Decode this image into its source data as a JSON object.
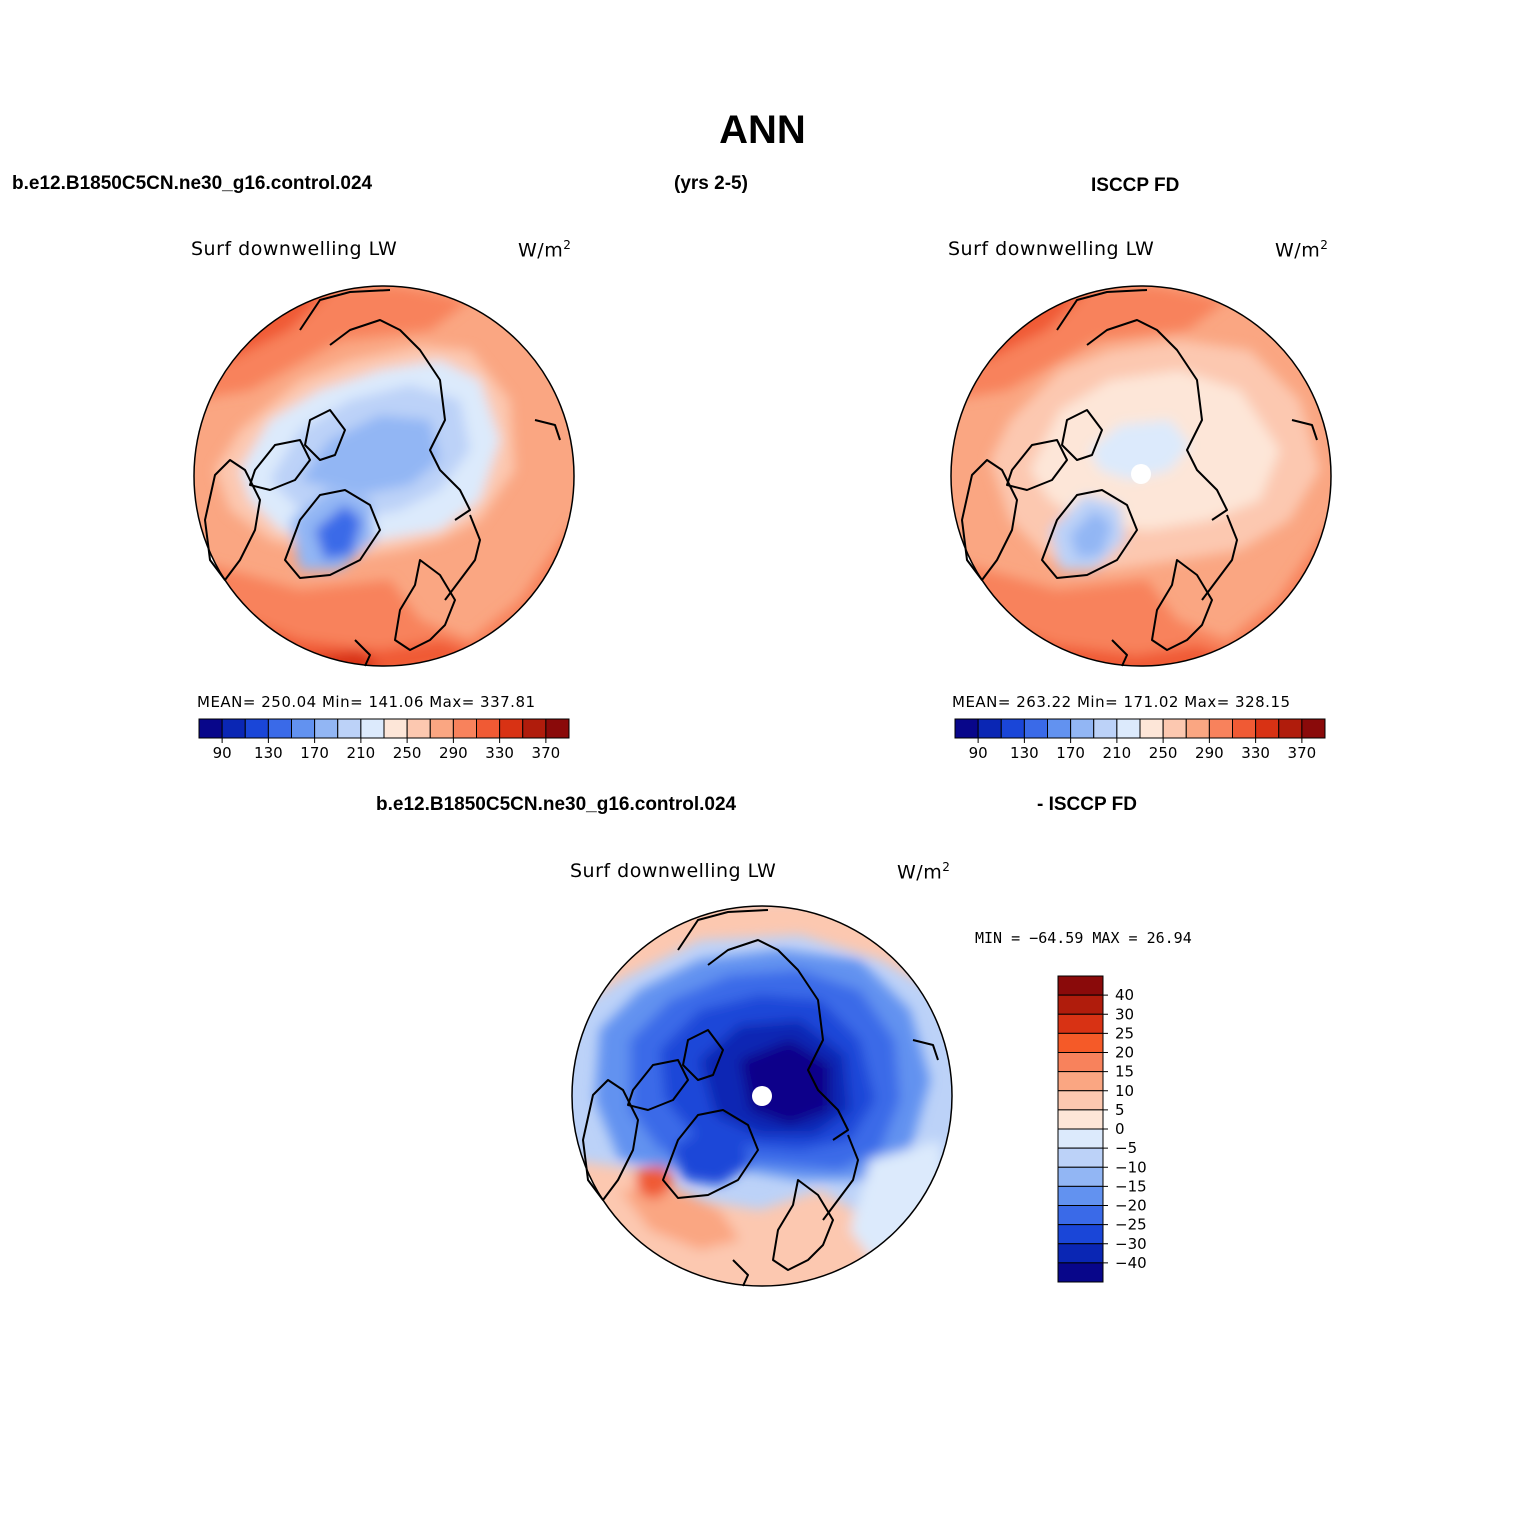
{
  "page": {
    "title": "ANN",
    "case_name": "b.e12.B1850C5CN.ne30_g16.control.024",
    "years": "(yrs 2-5)",
    "obs_name": "ISCCP FD",
    "diff_case_name": "b.e12.B1850C5CN.ne30_g16.control.024",
    "diff_obs_name": "- ISCCP FD"
  },
  "panels": {
    "model": {
      "variable": "Surf downwelling LW",
      "units": "W/m",
      "units_exp": "2",
      "stats": "MEAN= 250.04   Min= 141.06   Max= 337.81"
    },
    "obs": {
      "variable": "Surf downwelling LW",
      "units": "W/m",
      "units_exp": "2",
      "stats": "MEAN= 263.22   Min= 171.02   Max= 328.15"
    },
    "diff": {
      "variable": "Surf downwelling LW",
      "units": "W/m",
      "units_exp": "2",
      "stats": "MIN = −64.59 MAX =   26.94"
    }
  },
  "colorbars": {
    "absolute": {
      "colors": [
        "#08068a",
        "#0a26b4",
        "#1a46d8",
        "#3a6ae8",
        "#6292f0",
        "#92b6f4",
        "#bcd2f8",
        "#dceafc",
        "#fde6d8",
        "#fcc8b0",
        "#faa682",
        "#f8825c",
        "#f05a34",
        "#d83214",
        "#b01c0c",
        "#8a0a0a"
      ],
      "labels": [
        "90",
        "130",
        "170",
        "210",
        "250",
        "290",
        "330",
        "370"
      ]
    },
    "difference": {
      "colors": [
        "#8a0a0a",
        "#b01c0c",
        "#d83214",
        "#f55a28",
        "#f8825c",
        "#faa682",
        "#fcc8b0",
        "#fde6d8",
        "#dceafc",
        "#bcd2f8",
        "#92b6f4",
        "#6292f0",
        "#3a6ae8",
        "#1a46d8",
        "#0a26b4",
        "#08068a"
      ],
      "labels": [
        "40",
        "30",
        "25",
        "20",
        "15",
        "10",
        "5",
        "0",
        "−5",
        "−10",
        "−15",
        "−20",
        "−25",
        "−30",
        "−40"
      ]
    }
  }
}
